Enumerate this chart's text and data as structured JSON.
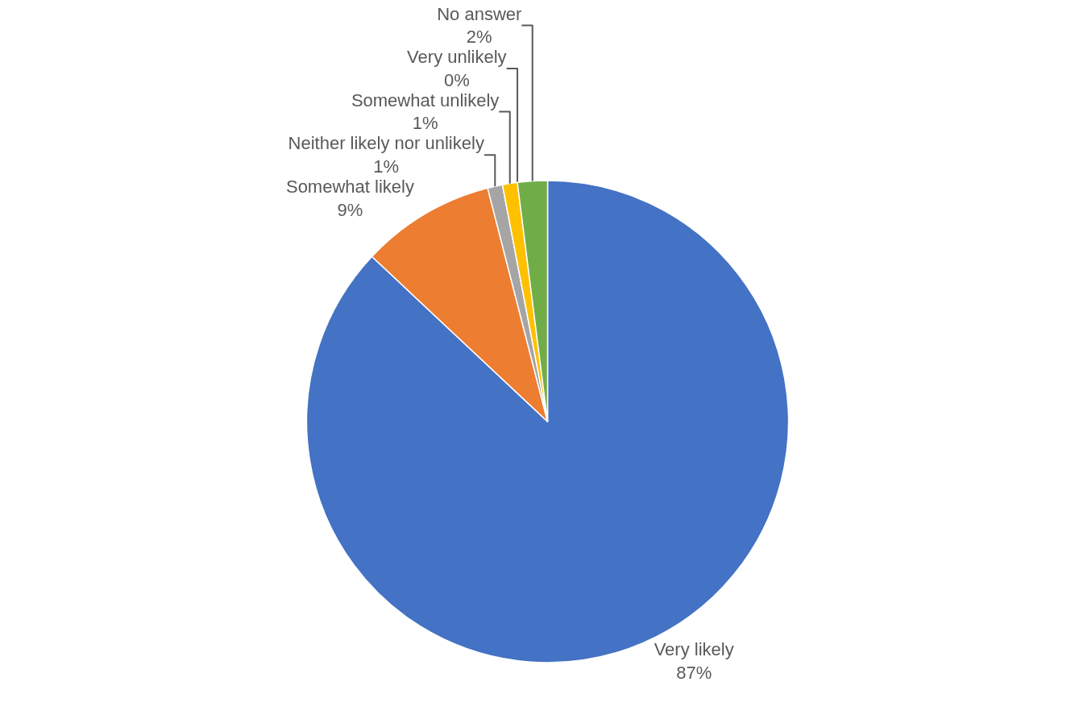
{
  "chart_data": {
    "type": "pie",
    "categories": [
      "Very likely",
      "Somewhat likely",
      "Neither likely nor unlikely",
      "Somewhat unlikely",
      "Very unlikely",
      "No answer"
    ],
    "values": [
      87,
      9,
      1,
      1,
      0,
      2
    ],
    "value_labels": [
      "87%",
      "9%",
      "1%",
      "1%",
      "0%",
      "2%"
    ],
    "colors": [
      "#4472c4",
      "#ed7d31",
      "#a5a5a5",
      "#ffc000",
      "#5b9bd5",
      "#70ad47"
    ]
  }
}
